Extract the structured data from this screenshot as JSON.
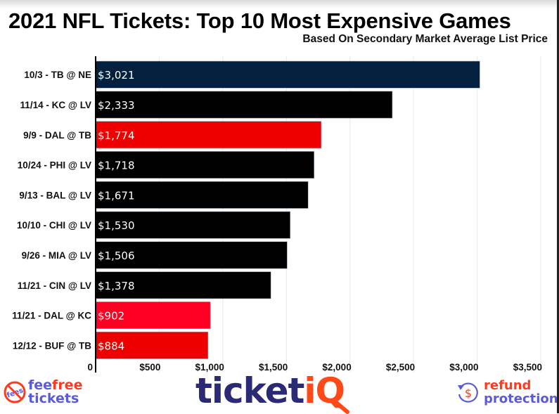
{
  "chart_data": {
    "type": "bar",
    "orientation": "horizontal",
    "title": "2021 NFL Tickets: Top 10 Most Expensive Games",
    "subtitle": "Based On Secondary Market Average List Price",
    "xlabel": "",
    "ylabel": "",
    "xlim": [
      0,
      3500
    ],
    "grid": true,
    "categories": [
      "10/3 - TB @ NE",
      "11/14 - KC @ LV",
      "9/9 - DAL @ TB",
      "10/24 - PHI @ LV",
      "9/13 - BAL @ LV",
      "10/10 - CHI @ LV",
      "9/26 - MIA @ LV",
      "11/21 - CIN @ LV",
      "11/21 - DAL @ KC",
      "12/12 - BUF @ TB"
    ],
    "values": [
      3021,
      2333,
      1774,
      1718,
      1671,
      1530,
      1506,
      1378,
      902,
      884
    ],
    "value_labels": [
      "$3,021",
      "$2,333",
      "$1,774",
      "$1,718",
      "$1,671",
      "$1,530",
      "$1,506",
      "$1,378",
      "$902",
      "$884"
    ],
    "bar_colors": [
      "#03213f",
      "#000000",
      "#ee0000",
      "#000000",
      "#000000",
      "#000000",
      "#000000",
      "#000000",
      "#ff0022",
      "#ee0000"
    ],
    "x_ticks": [
      0,
      500,
      1000,
      1500,
      2000,
      2500,
      3000,
      3500
    ],
    "x_tick_labels": [
      "0",
      "$500",
      "$1,000",
      "$1,500",
      "$2,000",
      "$2,500",
      "$3,000",
      "$3,500"
    ]
  },
  "footer": {
    "feefree": {
      "fee": "fee",
      "free": "free",
      "tickets": "tickets",
      "badge": "fees"
    },
    "ticketiq": {
      "ticket": "ticket",
      "iq": "iQ"
    },
    "refund": {
      "refund": "refund",
      "protection": "protection",
      "symbol": "$"
    }
  },
  "colors": {
    "brand_purple": "#5b5bd6",
    "brand_navy": "#2b2a74",
    "brand_orange": "#ff4a17"
  }
}
